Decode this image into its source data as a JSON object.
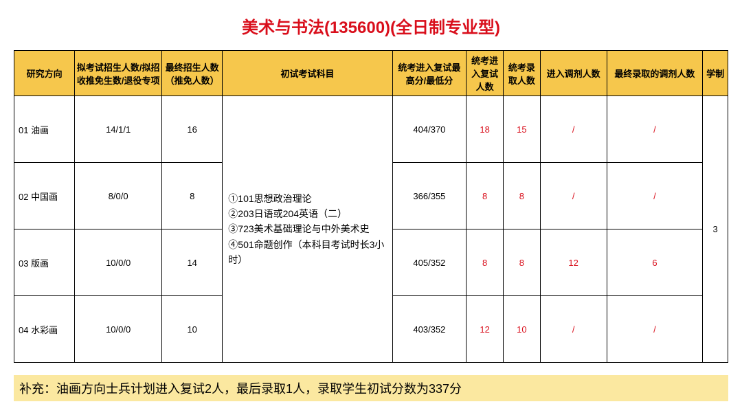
{
  "colors": {
    "title": "#d90e1b",
    "header_bg": "#f6c74c",
    "red_text": "#d90e1b",
    "note_bg": "#fbe8a0",
    "border": "#000000"
  },
  "title": "美术与书法(135600)(全日制专业型)",
  "headers": {
    "c0": "研究方向",
    "c1": "拟考试招生人数/拟招收推免生数/退役专项",
    "c2": "最终招生人数（推免人数）",
    "c3": "初试考试科目",
    "c4": "统考进入复试最高分/最低分",
    "c5": "统考进入复试人数",
    "c6": "统考录取人数",
    "c7": "进入调剂人数",
    "c8": "最终录取的调剂人数",
    "c9": "学制"
  },
  "subjects": "①101思想政治理论\n②203日语或204英语（二）\n③723美术基础理论与中外美术史\n④501命题创作（本科目考试时长3小时）",
  "duration": "3",
  "rows": [
    {
      "dir": "01 油画",
      "plan": "14/1/1",
      "final": "16",
      "score": "404/370",
      "enter": "18",
      "admit": "15",
      "adj_in": "/",
      "adj_final": "/"
    },
    {
      "dir": "02 中国画",
      "plan": "8/0/0",
      "final": "8",
      "score": "366/355",
      "enter": "8",
      "admit": "8",
      "adj_in": "/",
      "adj_final": "/"
    },
    {
      "dir": "03 版画",
      "plan": "10/0/0",
      "final": "14",
      "score": "405/352",
      "enter": "8",
      "admit": "8",
      "adj_in": "12",
      "adj_final": "6"
    },
    {
      "dir": "04 水彩画",
      "plan": "10/0/0",
      "final": "10",
      "score": "403/352",
      "enter": "12",
      "admit": "10",
      "adj_in": "/",
      "adj_final": "/"
    }
  ],
  "note": "补充：油画方向士兵计划进入复试2人，最后录取1人，录取学生初试分数为337分",
  "col_widths": [
    "82",
    "118",
    "82",
    "230",
    "100",
    "50",
    "50",
    "90",
    "130",
    "34"
  ]
}
